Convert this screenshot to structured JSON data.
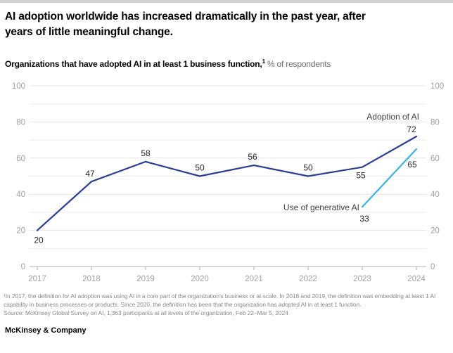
{
  "header": {
    "title_lines": [
      "AI adoption worldwide has increased dramatically in the past year, after",
      "years of little meaningful change."
    ],
    "subtitle_bold": "Organizations that have adopted AI in at least 1 business function,",
    "subtitle_sup": "1",
    "subtitle_rest": " % of respondents"
  },
  "colors": {
    "adoption_line": "#2a3d96",
    "genai_line": "#38b3e8",
    "grid": "#e3e3e3",
    "grid_minor": "#ebebeb",
    "axis": "#b2b2b2",
    "axis_text": "#a0a0a0",
    "data_label": "#262626",
    "series_label": "#3d3d3d",
    "footnote_text": "#8a8a8a",
    "topbar": "#d0d0d0"
  },
  "chart_data": {
    "type": "line",
    "x": [
      2017,
      2018,
      2019,
      2020,
      2021,
      2022,
      2023,
      2024
    ],
    "series": [
      {
        "name": "Adoption of AI",
        "color": "#2a3d96",
        "values": [
          20,
          47,
          58,
          50,
          56,
          50,
          55,
          72
        ],
        "label_offsets": [
          [
            2,
            18
          ],
          [
            -2,
            -7
          ],
          [
            0,
            -8
          ],
          [
            0,
            -8
          ],
          [
            -2,
            -8
          ],
          [
            0,
            -8
          ],
          [
            -2,
            16
          ],
          [
            -7,
            -6
          ]
        ],
        "name_label": {
          "x": 596,
          "y": 60,
          "anchor": "end"
        }
      },
      {
        "name": "Use of generative AI",
        "color": "#38b3e8",
        "values": [
          null,
          null,
          null,
          null,
          null,
          null,
          33,
          65
        ],
        "label_offsets": [
          null,
          null,
          null,
          null,
          null,
          null,
          [
            3,
            21
          ],
          [
            -6,
            26
          ]
        ],
        "name_label": {
          "x": 511,
          "y": 189,
          "anchor": "end"
        }
      }
    ],
    "ylim": [
      0,
      100
    ],
    "yticks": [
      0,
      20,
      40,
      60,
      80,
      100
    ],
    "grid_minor_values": [
      10,
      30,
      50,
      70,
      90
    ],
    "grid": true,
    "legend_position": "inline-annotations",
    "yaxis_sides": "both",
    "geometry": {
      "x0": 53,
      "xstep": 77,
      "y0": 269,
      "yscale": 2.57,
      "grid_x1": 42,
      "grid_x2": 606,
      "xtick_len": 5,
      "xlabel_y": 290,
      "ylabel_left_x": 36,
      "ylabel_right_x": 612
    }
  },
  "footnotes": {
    "note": "¹In 2017, the definition for AI adoption was using AI in a core part of the organization's business or at scale. In 2018 and 2019, the definition was embedding at least 1 AI capability in business processes or products. Since 2020, the definition has been that the organization has adopted AI in at least 1 function.",
    "source": "Source: McKinsey Global Survey on AI, 1,363 participants at all levels of the organization, Feb 22–Mar 5, 2024"
  },
  "footer": {
    "brand": "McKinsey & Company"
  }
}
